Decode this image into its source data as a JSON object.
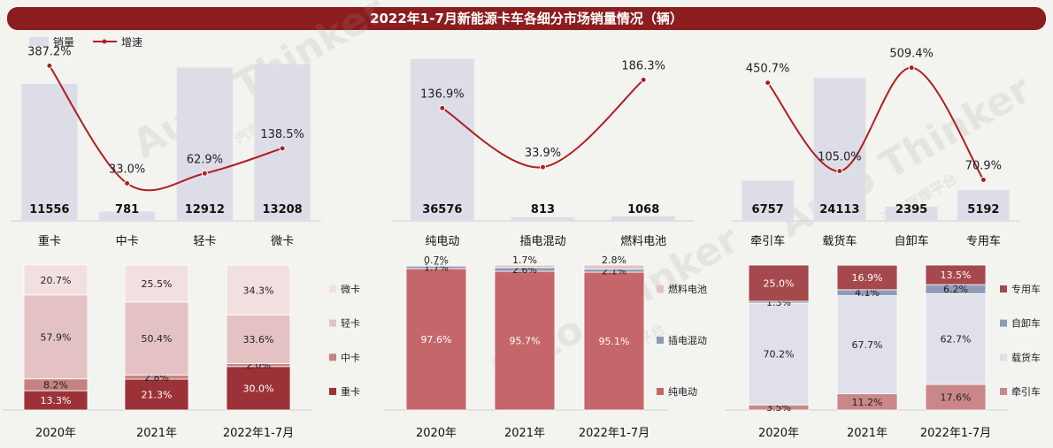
{
  "title": "2022年1-7月新能源卡车各细分市场销量情况（辆）",
  "watermark": {
    "text": "Auto Thinker",
    "cn": "汽车智库平台"
  },
  "colors": {
    "bar_light": "#dcdde7",
    "line_red": "#b01e23",
    "seg_dark": "#9b3237",
    "seg_mid": "#c48381",
    "seg_pink": "#e4c2c4",
    "seg_pale": "#f2e0e1",
    "seg_salmon": "#c5676a",
    "seg_blue": "#8f9bb8",
    "seg_lav": "#dfe0ea",
    "seg_rose": "#c98788",
    "seg_maroon": "#a6494c"
  },
  "legend_top": {
    "bar": "销量",
    "line": "增速"
  },
  "chart_data": [
    {
      "type": "bar",
      "group": "top-left",
      "categories": [
        "重卡",
        "中卡",
        "轻卡",
        "微卡"
      ],
      "series": [
        {
          "name": "销量",
          "type": "bar",
          "values": [
            11556,
            781,
            12912,
            13208
          ]
        },
        {
          "name": "增速",
          "type": "line",
          "values": [
            387.2,
            33.0,
            62.9,
            138.5
          ],
          "labels": [
            "387.2%",
            "33.0%",
            "62.9%",
            "138.5%"
          ]
        }
      ]
    },
    {
      "type": "bar",
      "group": "top-middle",
      "categories": [
        "纯电动",
        "插电混动",
        "燃料电池"
      ],
      "series": [
        {
          "name": "销量",
          "type": "bar",
          "values": [
            36576,
            813,
            1068
          ]
        },
        {
          "name": "增速",
          "type": "line",
          "values": [
            136.9,
            33.9,
            186.3
          ],
          "labels": [
            "136.9%",
            "33.9%",
            "186.3%"
          ]
        }
      ]
    },
    {
      "type": "bar",
      "group": "top-right",
      "categories": [
        "牵引车",
        "载货车",
        "自卸车",
        "专用车"
      ],
      "series": [
        {
          "name": "销量",
          "type": "bar",
          "values": [
            6757,
            24113,
            2395,
            5192
          ]
        },
        {
          "name": "增速",
          "type": "line",
          "values": [
            450.7,
            105.0,
            509.4,
            70.9
          ],
          "labels": [
            "450.7%",
            "105.0%",
            "509.4%",
            "70.9%"
          ]
        }
      ]
    },
    {
      "type": "bar",
      "stacked": true,
      "group": "bottom-left",
      "categories": [
        "2020年",
        "2021年",
        "2022年1-7月"
      ],
      "series": [
        {
          "name": "重卡",
          "values": [
            13.3,
            21.3,
            30.0
          ],
          "labels": [
            "13.3%",
            "21.3%",
            "30.0%"
          ]
        },
        {
          "name": "中卡",
          "values": [
            8.2,
            2.8,
            2.0
          ],
          "labels": [
            "8.2%",
            "2.8%",
            "2.0%"
          ]
        },
        {
          "name": "轻卡",
          "values": [
            57.9,
            50.4,
            33.6
          ],
          "labels": [
            "57.9%",
            "50.4%",
            "33.6%"
          ]
        },
        {
          "name": "微卡",
          "values": [
            20.7,
            25.5,
            34.3
          ],
          "labels": [
            "20.7%",
            "25.5%",
            "34.3%"
          ]
        }
      ]
    },
    {
      "type": "bar",
      "stacked": true,
      "group": "bottom-middle",
      "categories": [
        "2020年",
        "2021年",
        "2022年1-7月"
      ],
      "series": [
        {
          "name": "纯电动",
          "values": [
            97.6,
            95.7,
            95.1
          ],
          "labels": [
            "97.6%",
            "95.7%",
            "95.1%"
          ]
        },
        {
          "name": "插电混动",
          "values": [
            1.7,
            2.6,
            2.1
          ],
          "labels": [
            "1.7%",
            "2.6%",
            "2.1%"
          ]
        },
        {
          "name": "燃料电池",
          "values": [
            0.7,
            1.7,
            2.8
          ],
          "labels": [
            "0.7%",
            "1.7%",
            "2.8%"
          ]
        }
      ]
    },
    {
      "type": "bar",
      "stacked": true,
      "group": "bottom-right",
      "categories": [
        "2020年",
        "2021年",
        "2022年1-7月"
      ],
      "series": [
        {
          "name": "牵引车",
          "values": [
            3.5,
            11.2,
            17.6
          ],
          "labels": [
            "3.5%",
            "11.2%",
            "17.6%"
          ]
        },
        {
          "name": "载货车",
          "values": [
            70.2,
            67.7,
            62.7
          ],
          "labels": [
            "70.2%",
            "67.7%",
            "62.7%"
          ]
        },
        {
          "name": "自卸车",
          "values": [
            1.3,
            4.1,
            6.2
          ],
          "labels": [
            "1.3%",
            "4.1%",
            "6.2%"
          ]
        },
        {
          "name": "专用车",
          "values": [
            25.0,
            16.9,
            13.5
          ],
          "labels": [
            "25.0%",
            "16.9%",
            "13.5%"
          ]
        }
      ]
    }
  ]
}
